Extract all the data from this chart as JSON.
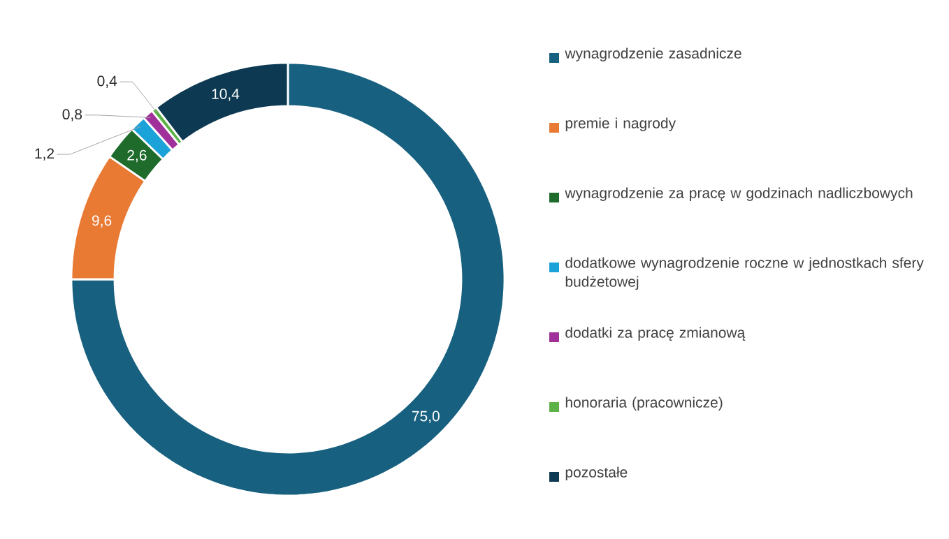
{
  "chart_data": {
    "type": "donut",
    "categories": [
      "wynagrodzenie zasadnicze",
      "premie i nagrody",
      "wynagrodzenie za pracę w godzinach nadliczbowych",
      "dodatkowe wynagrodzenie roczne w jednostkach sfery budżetowej",
      "dodatki za pracę zmianową",
      "honoraria (pracownicze)",
      "pozostałe"
    ],
    "values": [
      75.0,
      9.6,
      2.6,
      1.2,
      0.8,
      0.4,
      10.4
    ],
    "value_labels": [
      "75,0",
      "9,6",
      "2,6",
      "1,2",
      "0,8",
      "0,4",
      "10,4"
    ],
    "colors": [
      "#17607f",
      "#e97a34",
      "#1e6b2c",
      "#1ba2d8",
      "#a0309a",
      "#5cb246",
      "#0d3a52"
    ],
    "legend": "right"
  }
}
